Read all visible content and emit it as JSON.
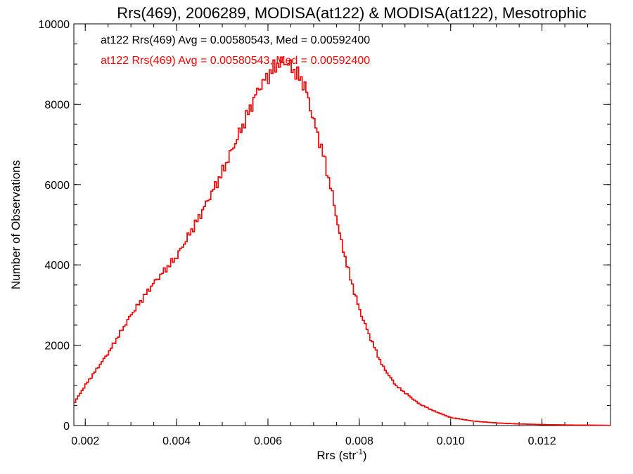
{
  "chart_data": {
    "type": "line",
    "style": "step-histogram",
    "title": "Rrs(469), 2006289, MODISA(at122) & MODISA(at122), Mesotrophic",
    "xlabel": "Rrs (str",
    "xlabel_superscript": "-1",
    "xlabel_suffix": ")",
    "ylabel": "Number of Observations",
    "xlim": [
      0.00175,
      0.0135
    ],
    "ylim": [
      0,
      10000
    ],
    "x_ticks": [
      0.002,
      0.004,
      0.006,
      0.008,
      0.01,
      0.012
    ],
    "x_tick_labels": [
      "0.002",
      "0.004",
      "0.006",
      "0.008",
      "0.010",
      "0.012"
    ],
    "y_ticks": [
      0,
      2000,
      4000,
      6000,
      8000,
      10000
    ],
    "y_tick_labels": [
      "0",
      "2000",
      "4000",
      "6000",
      "8000",
      "10000"
    ],
    "grid": false,
    "annotations": [
      {
        "text": "at122 Rrs(469) Avg = 0.00580543, Med = 0.00592400",
        "color": "#000000"
      },
      {
        "text": "at122 Rrs(469) Avg = 0.00580543, Med = 0.00592400",
        "color": "#ff0000"
      }
    ],
    "series": [
      {
        "color": "#ff0000",
        "overlaid_color": "#000000",
        "x": [
          0.00175,
          0.002,
          0.0025,
          0.003,
          0.0035,
          0.004,
          0.0045,
          0.005,
          0.0055,
          0.0058,
          0.006,
          0.0062,
          0.0064,
          0.0066,
          0.0068,
          0.007,
          0.0072,
          0.0074,
          0.0076,
          0.0078,
          0.008,
          0.0082,
          0.0085,
          0.0088,
          0.009,
          0.0093,
          0.0096,
          0.01,
          0.0105,
          0.011,
          0.0115,
          0.012,
          0.0125,
          0.013,
          0.0135
        ],
        "values": [
          550,
          1000,
          1800,
          2750,
          3550,
          4200,
          5200,
          6300,
          7600,
          8400,
          8700,
          9000,
          9050,
          8800,
          8500,
          7600,
          6800,
          5800,
          4600,
          3700,
          2900,
          2300,
          1500,
          1000,
          820,
          550,
          380,
          200,
          110,
          65,
          40,
          25,
          15,
          10,
          5
        ]
      }
    ]
  }
}
